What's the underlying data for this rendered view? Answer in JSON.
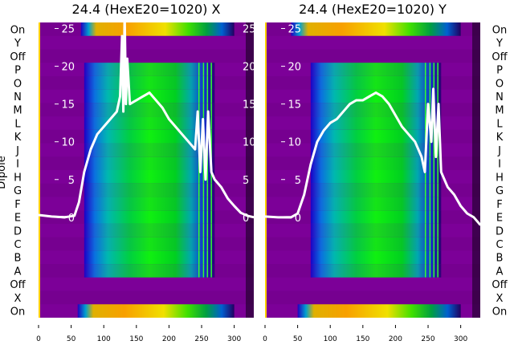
{
  "chart_data": [
    {
      "type": "heatmap",
      "title": "24.4 (HexE20=1020) X",
      "ylabel": "Dipole",
      "row_labels": [
        "On",
        "Y",
        "Off",
        "P",
        "O",
        "N",
        "M",
        "L",
        "K",
        "J",
        "I",
        "H",
        "G",
        "F",
        "E",
        "D",
        "C",
        "B",
        "A",
        "Off",
        "X",
        "On"
      ],
      "x_ticks": [
        0,
        50,
        100,
        150,
        200,
        250,
        300
      ],
      "xlim": [
        0,
        330
      ],
      "inner_y_ticks": [
        0,
        5,
        10,
        15,
        20,
        25
      ],
      "inner_ylim": [
        -13.3,
        25.8
      ],
      "rows": [
        {
          "label": "On",
          "kind": "hot",
          "start": 65,
          "end": 300
        },
        {
          "label": "Y",
          "kind": "empty"
        },
        {
          "label": "Off",
          "kind": "empty"
        },
        {
          "label": "P",
          "kind": "beam",
          "start": 70,
          "end": 270
        },
        {
          "label": "O",
          "kind": "beam",
          "start": 70,
          "end": 270
        },
        {
          "label": "N",
          "kind": "beam",
          "start": 70,
          "end": 270
        },
        {
          "label": "M",
          "kind": "beam",
          "start": 70,
          "end": 270
        },
        {
          "label": "L",
          "kind": "beam",
          "start": 70,
          "end": 270
        },
        {
          "label": "K",
          "kind": "beam",
          "start": 70,
          "end": 270
        },
        {
          "label": "J",
          "kind": "beam",
          "start": 70,
          "end": 270
        },
        {
          "label": "I",
          "kind": "beam",
          "start": 70,
          "end": 270
        },
        {
          "label": "H",
          "kind": "beam",
          "start": 70,
          "end": 270
        },
        {
          "label": "G",
          "kind": "beam",
          "start": 70,
          "end": 270
        },
        {
          "label": "F",
          "kind": "beam",
          "start": 70,
          "end": 270
        },
        {
          "label": "E",
          "kind": "beam",
          "start": 70,
          "end": 270
        },
        {
          "label": "D",
          "kind": "beam",
          "start": 70,
          "end": 270
        },
        {
          "label": "C",
          "kind": "beam",
          "start": 70,
          "end": 270
        },
        {
          "label": "B",
          "kind": "beam",
          "start": 70,
          "end": 270
        },
        {
          "label": "A",
          "kind": "beam",
          "start": 70,
          "end": 270
        },
        {
          "label": "Off",
          "kind": "empty"
        },
        {
          "label": "X",
          "kind": "empty"
        },
        {
          "label": "On",
          "kind": "hot",
          "start": 60,
          "end": 300
        }
      ],
      "line": {
        "x": [
          0,
          20,
          40,
          55,
          62,
          70,
          80,
          90,
          100,
          110,
          120,
          125,
          128,
          130,
          132,
          134,
          136,
          140,
          150,
          160,
          170,
          180,
          190,
          200,
          210,
          220,
          230,
          240,
          244,
          248,
          252,
          256,
          260,
          265,
          270,
          280,
          290,
          300,
          310,
          320,
          330
        ],
        "y": [
          0.3,
          0.1,
          0,
          0.2,
          2,
          6,
          9,
          11,
          12,
          13,
          14,
          16,
          24,
          14,
          27,
          15,
          21,
          15,
          15.5,
          16,
          16.5,
          15.5,
          14.5,
          13,
          12,
          11,
          10,
          9,
          14,
          6,
          13,
          5,
          14,
          6,
          5,
          4,
          2.5,
          1.5,
          0.6,
          0.2,
          0
        ]
      }
    },
    {
      "type": "heatmap",
      "title": "24.4 (HexE20=1020) Y",
      "row_labels": [
        "On",
        "Y",
        "Off",
        "P",
        "O",
        "N",
        "M",
        "L",
        "K",
        "J",
        "I",
        "H",
        "G",
        "F",
        "E",
        "D",
        "C",
        "B",
        "A",
        "Off",
        "X",
        "On"
      ],
      "x_ticks": [
        0,
        50,
        100,
        150,
        200,
        250,
        300
      ],
      "xlim": [
        0,
        330
      ],
      "inner_y_ticks": [
        0,
        5,
        10,
        15,
        20,
        25
      ],
      "inner_ylim": [
        -13.3,
        25.8
      ],
      "rows": [
        {
          "label": "On",
          "kind": "hot",
          "start": 40,
          "end": 300
        },
        {
          "label": "Y",
          "kind": "empty"
        },
        {
          "label": "Off",
          "kind": "empty"
        },
        {
          "label": "P",
          "kind": "beam",
          "start": 70,
          "end": 270
        },
        {
          "label": "O",
          "kind": "beam",
          "start": 70,
          "end": 270
        },
        {
          "label": "N",
          "kind": "beam",
          "start": 70,
          "end": 270
        },
        {
          "label": "M",
          "kind": "beam",
          "start": 70,
          "end": 270
        },
        {
          "label": "L",
          "kind": "beam",
          "start": 70,
          "end": 270
        },
        {
          "label": "K",
          "kind": "beam",
          "start": 70,
          "end": 270
        },
        {
          "label": "J",
          "kind": "beam",
          "start": 70,
          "end": 270
        },
        {
          "label": "I",
          "kind": "beam",
          "start": 70,
          "end": 270
        },
        {
          "label": "H",
          "kind": "beam",
          "start": 70,
          "end": 270
        },
        {
          "label": "G",
          "kind": "beam",
          "start": 70,
          "end": 270
        },
        {
          "label": "F",
          "kind": "beam",
          "start": 70,
          "end": 270
        },
        {
          "label": "E",
          "kind": "beam",
          "start": 70,
          "end": 270
        },
        {
          "label": "D",
          "kind": "beam",
          "start": 70,
          "end": 270
        },
        {
          "label": "C",
          "kind": "beam",
          "start": 70,
          "end": 270
        },
        {
          "label": "B",
          "kind": "beam",
          "start": 70,
          "end": 270
        },
        {
          "label": "A",
          "kind": "beam",
          "start": 70,
          "end": 270
        },
        {
          "label": "Off",
          "kind": "empty"
        },
        {
          "label": "X",
          "kind": "empty"
        },
        {
          "label": "On",
          "kind": "hot",
          "start": 50,
          "end": 300
        }
      ],
      "line": {
        "x": [
          0,
          20,
          40,
          50,
          60,
          70,
          80,
          90,
          100,
          110,
          120,
          130,
          140,
          150,
          160,
          170,
          180,
          190,
          200,
          210,
          220,
          230,
          240,
          245,
          250,
          255,
          258,
          262,
          266,
          270,
          280,
          290,
          300,
          310,
          320,
          330
        ],
        "y": [
          0.1,
          0,
          0,
          0.5,
          3,
          7,
          10,
          11.5,
          12.5,
          13,
          14,
          15,
          15.5,
          15.5,
          16,
          16.5,
          16,
          15,
          13.5,
          12,
          11,
          10,
          8,
          6,
          15,
          10,
          17,
          8,
          15,
          6,
          4,
          3,
          1.5,
          0.5,
          0,
          -1
        ]
      }
    }
  ]
}
